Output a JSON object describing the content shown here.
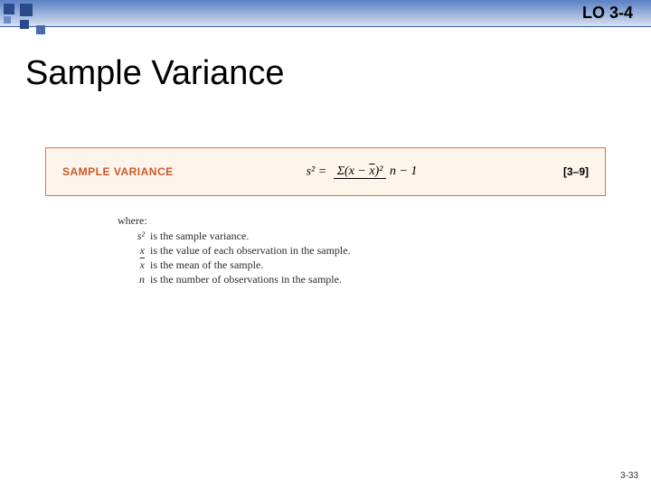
{
  "header": {
    "lo_label": "LO 3-4"
  },
  "title": "Sample Variance",
  "formula_box": {
    "label": "SAMPLE VARIANCE",
    "lhs": "s² =",
    "numerator": "Σ(x − x̄)²",
    "denominator": "n − 1",
    "reference": "[3–9]",
    "border_color": "#d97742",
    "background_color": "#fdf4eb",
    "label_color": "#c85a2a"
  },
  "where": {
    "intro": "where:",
    "definitions": [
      {
        "symbol": "s²",
        "text": "is the sample variance."
      },
      {
        "symbol": "x",
        "text": "is the value of each observation in the sample."
      },
      {
        "symbol": "x̄",
        "text": "is the mean of the sample."
      },
      {
        "symbol": "n",
        "text": "is the number of observations in the sample."
      }
    ]
  },
  "page_number": "3-33",
  "colors": {
    "header_gradient_top": "#5a7fc4",
    "header_gradient_bottom": "#d8e2f2",
    "square_dark": "#2a4a8a",
    "background": "#ffffff"
  }
}
